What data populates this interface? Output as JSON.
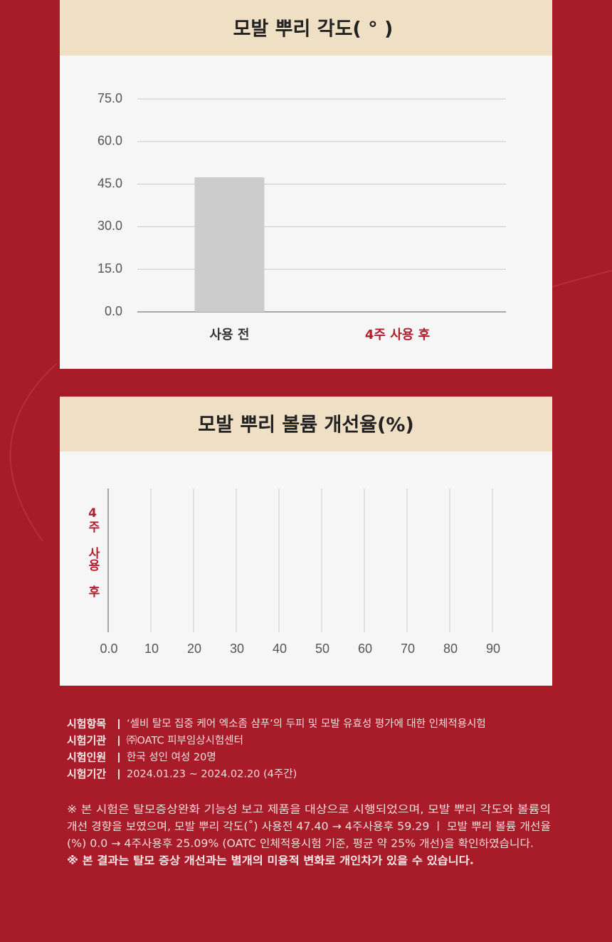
{
  "chart_data": [
    {
      "type": "bar",
      "title": "모발 뿌리 각도( ° )",
      "categories": [
        "사용 전",
        "4주 사용 후"
      ],
      "values": [
        47.4,
        null
      ],
      "color": "#cccccc",
      "highlight_color": "#b01e2e",
      "ylim": [
        0,
        75
      ],
      "yticks": [
        {
          "value": 0,
          "label": "0.0"
        },
        {
          "value": 15,
          "label": "15.0"
        },
        {
          "value": 30,
          "label": "30.0"
        },
        {
          "value": 45,
          "label": "45.0"
        },
        {
          "value": 60,
          "label": "60.0"
        },
        {
          "value": 75,
          "label": "75.0"
        }
      ],
      "grid": true
    },
    {
      "type": "barh",
      "title": "모발 뿌리 볼륨 개선율(%)",
      "categories": [
        "4주 사용 후"
      ],
      "values": [
        null
      ],
      "color": "#b01e2e",
      "highlight_color": "#b01e2e",
      "xlim": [
        0,
        90
      ],
      "xticks": [
        {
          "value": 0,
          "label": "0.0"
        },
        10,
        20,
        30,
        40,
        50,
        60,
        70,
        80,
        90
      ],
      "grid": true
    }
  ],
  "notes": {
    "items": [
      {
        "label": "시험항목",
        "text": "’셀비 탈모 집중 케어 엑소좀 샴푸’의 두피 및 모발 유효성 평가에 대한 인체적용시험"
      },
      {
        "label": "시험기관",
        "text": "㈜OATC 피부임상시험센터"
      },
      {
        "label": "시험인원",
        "text": "한국 성인 여성 20명"
      },
      {
        "label": "시험기간",
        "text": "2024.01.23 ~ 2024.02.20 (4주간)"
      }
    ],
    "remarks": [
      "※ 본 시험은 탈모증상완화 기능성 보고 제품을 대상으로 시행되었으며, 모발 뿌리 각도와 볼륨의",
      "개선 경향을 보였으며, 모발 뿌리 각도(˚) 사용전 47.40 → 4주사용후 59.29 ㅣ 모발 뿌리 볼륨 개선율",
      "(%) 0.0 → 4주사용후 25.09% (OATC 인체적용시험 기준, 평균 약 25% 개선)을 확인하였습니다."
    ],
    "emphasis": "※ 본 결과는 탈모 증상 개선과는 별개의 미용적 변화로 개인차가 있을 수 있습니다."
  }
}
